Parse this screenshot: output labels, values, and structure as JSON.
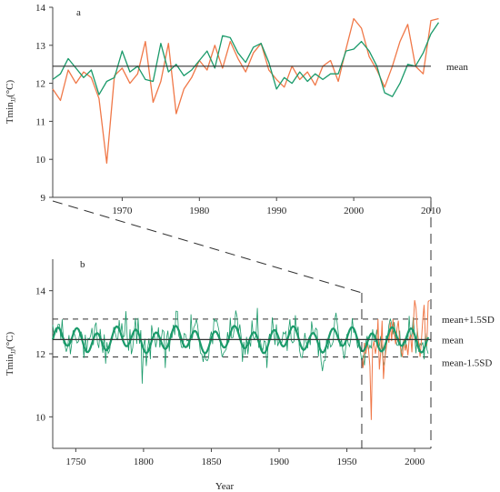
{
  "colors": {
    "reconstruction": "#1a9a6a",
    "observed": "#f07848",
    "axis": "#444444",
    "reference": "#333333"
  },
  "chart_data": [
    {
      "panel_label": "a",
      "type": "line",
      "xlim": [
        1961,
        2010
      ],
      "ylim": [
        9,
        14
      ],
      "xticks": [
        1970,
        1980,
        1990,
        2000,
        2010
      ],
      "yticks": [
        9,
        10,
        11,
        12,
        13,
        14
      ],
      "ylabel_main": "Tmin",
      "ylabel_sub": "JJ",
      "ylabel_unit": "(°C)",
      "mean": 12.45,
      "mean_label": "mean",
      "series": [
        {
          "color_key": "observed",
          "x_start": 1961,
          "values": [
            11.85,
            11.55,
            12.35,
            12.0,
            12.3,
            12.15,
            11.6,
            9.9,
            12.2,
            12.4,
            12.0,
            12.25,
            13.1,
            11.5,
            12.05,
            13.05,
            11.2,
            11.85,
            12.15,
            12.6,
            12.35,
            13.0,
            12.4,
            13.1,
            12.65,
            12.3,
            12.8,
            13.05,
            12.35,
            12.1,
            11.9,
            12.45,
            12.1,
            12.3,
            11.95,
            12.45,
            12.6,
            12.05,
            12.9,
            13.7,
            13.45,
            12.7,
            12.35,
            11.9,
            12.45,
            13.1,
            13.55,
            12.45,
            12.25,
            13.65,
            13.7
          ]
        },
        {
          "color_key": "reconstruction",
          "x_start": 1961,
          "values": [
            12.1,
            12.25,
            12.65,
            12.4,
            12.15,
            12.35,
            11.7,
            12.05,
            12.15,
            12.85,
            12.3,
            12.45,
            12.1,
            12.05,
            13.05,
            12.3,
            12.5,
            12.2,
            12.35,
            12.6,
            12.85,
            12.4,
            13.25,
            13.2,
            12.8,
            12.55,
            12.95,
            13.05,
            12.55,
            11.85,
            12.15,
            12.0,
            12.3,
            12.05,
            12.25,
            12.1,
            12.25,
            12.25,
            12.85,
            12.9,
            13.1,
            12.85,
            12.45,
            11.75,
            11.65,
            12.0,
            12.5,
            12.45,
            12.8,
            13.3,
            13.6
          ]
        }
      ]
    },
    {
      "panel_label": "b",
      "type": "line",
      "xlabel": "Year",
      "xlim": [
        1733,
        2012
      ],
      "ylim": [
        9,
        15
      ],
      "xticks": [
        1750,
        1800,
        1850,
        1900,
        1950,
        2000
      ],
      "yticks": [
        10,
        12,
        14
      ],
      "ylabel_main": "Tmin",
      "ylabel_sub": "JJ",
      "ylabel_unit": "(°C)",
      "mean": 12.45,
      "upper_band": 13.1,
      "lower_band": 11.9,
      "reference_labels": {
        "upper": "mean+1.5SD",
        "mean": "mean",
        "lower": "mean-1.5SD"
      },
      "reconstruction_start": 1733,
      "observed_start": 1961,
      "zoom_range": [
        1961,
        2010
      ]
    }
  ]
}
